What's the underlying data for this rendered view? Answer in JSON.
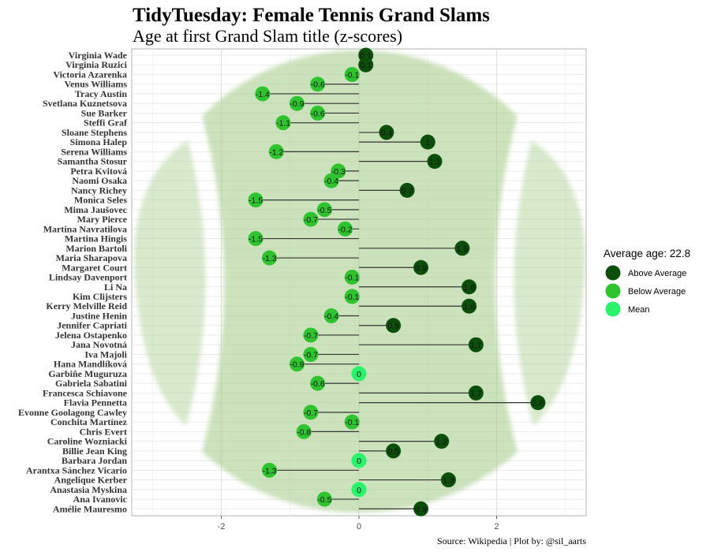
{
  "chart_data": {
    "type": "lollipop",
    "title": "TidyTuesday: Female Tennis Grand Slams",
    "subtitle": "Age at first Grand Slam title (z-scores)",
    "caption": "Source: Wikipedia | Plot by: @sil_aarts",
    "xlim": [
      -3.3,
      3.3
    ],
    "x_ticks": [
      -2,
      0,
      2
    ],
    "grid": true,
    "legend": {
      "title": "Average age: 22.8",
      "placement": "right",
      "entries": [
        {
          "label": "Above Average",
          "color": "#0b4f0b"
        },
        {
          "label": "Below Average",
          "color": "#2fc42f"
        },
        {
          "label": "Mean",
          "color": "#2bf26b"
        }
      ]
    },
    "players": [
      {
        "name": "Virginia Wade",
        "value": 0.1,
        "label": "0.1"
      },
      {
        "name": "Virginia Ruzici",
        "value": 0.1,
        "label": "0.1"
      },
      {
        "name": "Victoria Azarenka",
        "value": -0.1,
        "label": "-0.1"
      },
      {
        "name": "Venus Williams",
        "value": -0.6,
        "label": "-0.6"
      },
      {
        "name": "Tracy Austin",
        "value": -1.4,
        "label": "-1.4"
      },
      {
        "name": "Svetlana Kuznetsova",
        "value": -0.9,
        "label": "-0.9"
      },
      {
        "name": "Sue Barker",
        "value": -0.6,
        "label": "-0.6"
      },
      {
        "name": "Steffi Graf",
        "value": -1.1,
        "label": "-1.1"
      },
      {
        "name": "Sloane Stephens",
        "value": 0.4,
        "label": "0.4"
      },
      {
        "name": "Simona Halep",
        "value": 1.0,
        "label": "1"
      },
      {
        "name": "Serena Williams",
        "value": -1.2,
        "label": "-1.2"
      },
      {
        "name": "Samantha Stosur",
        "value": 1.1,
        "label": "1.1"
      },
      {
        "name": "Petra Kvitová",
        "value": -0.3,
        "label": "-0.3"
      },
      {
        "name": "Naomi Osaka",
        "value": -0.4,
        "label": "-0.4"
      },
      {
        "name": "Nancy Richey",
        "value": 0.7,
        "label": "0.7"
      },
      {
        "name": "Monica Seles",
        "value": -1.5,
        "label": "-1.5"
      },
      {
        "name": "Mima Jaušovec",
        "value": -0.5,
        "label": "-0.5"
      },
      {
        "name": "Mary Pierce",
        "value": -0.7,
        "label": "-0.7"
      },
      {
        "name": "Martina Navratilova",
        "value": -0.2,
        "label": "-0.2"
      },
      {
        "name": "Martina Hingis",
        "value": -1.5,
        "label": "-1.5"
      },
      {
        "name": "Marion Bartoli",
        "value": 1.5,
        "label": "1.5"
      },
      {
        "name": "Maria Sharapova",
        "value": -1.3,
        "label": "-1.3"
      },
      {
        "name": "Margaret Court",
        "value": 0.9,
        "label": "0.9"
      },
      {
        "name": "Lindsay Davenport",
        "value": -0.1,
        "label": "-0.1"
      },
      {
        "name": "Li Na",
        "value": 1.6,
        "label": "1.6"
      },
      {
        "name": "Kim Clijsters",
        "value": -0.1,
        "label": "-0.1"
      },
      {
        "name": "Kerry Melville Reid",
        "value": 1.6,
        "label": "1.6"
      },
      {
        "name": "Justine Henin",
        "value": -0.4,
        "label": "-0.4"
      },
      {
        "name": "Jennifer Capriati",
        "value": 0.5,
        "label": "0.5"
      },
      {
        "name": "Jelena Ostapenko",
        "value": -0.7,
        "label": "-0.7"
      },
      {
        "name": "Jana Novotná",
        "value": 1.7,
        "label": "1.7"
      },
      {
        "name": "Iva Majoli",
        "value": -0.7,
        "label": "-0.7"
      },
      {
        "name": "Hana Mandlíková",
        "value": -0.9,
        "label": "-0.9"
      },
      {
        "name": "Garbiñe Muguruza",
        "value": 0.0,
        "label": "0"
      },
      {
        "name": "Gabriela Sabatini",
        "value": -0.6,
        "label": "-0.6"
      },
      {
        "name": "Francesca Schiavone",
        "value": 1.7,
        "label": "1.7"
      },
      {
        "name": "Flavia Pennetta",
        "value": 2.6,
        "label": "2.6"
      },
      {
        "name": "Evonne Goolagong Cawley",
        "value": -0.7,
        "label": "-0.7"
      },
      {
        "name": "Conchita Martínez",
        "value": -0.1,
        "label": "-0.1"
      },
      {
        "name": "Chris Evert",
        "value": -0.8,
        "label": "-0.8"
      },
      {
        "name": "Caroline Wozniacki",
        "value": 1.2,
        "label": "1.2"
      },
      {
        "name": "Billie Jean King",
        "value": 0.5,
        "label": "0.5"
      },
      {
        "name": "Barbara Jordan",
        "value": 0.0,
        "label": "0"
      },
      {
        "name": "Arantxa Sánchez Vicario",
        "value": -1.3,
        "label": "-1.3"
      },
      {
        "name": "Angelique Kerber",
        "value": 1.3,
        "label": "1.3"
      },
      {
        "name": "Anastasia Myskina",
        "value": 0.0,
        "label": "0"
      },
      {
        "name": "Ana Ivanovic",
        "value": -0.5,
        "label": "-0.5"
      },
      {
        "name": "Amélie Mauresmo",
        "value": 0.9,
        "label": "0.9"
      }
    ]
  }
}
